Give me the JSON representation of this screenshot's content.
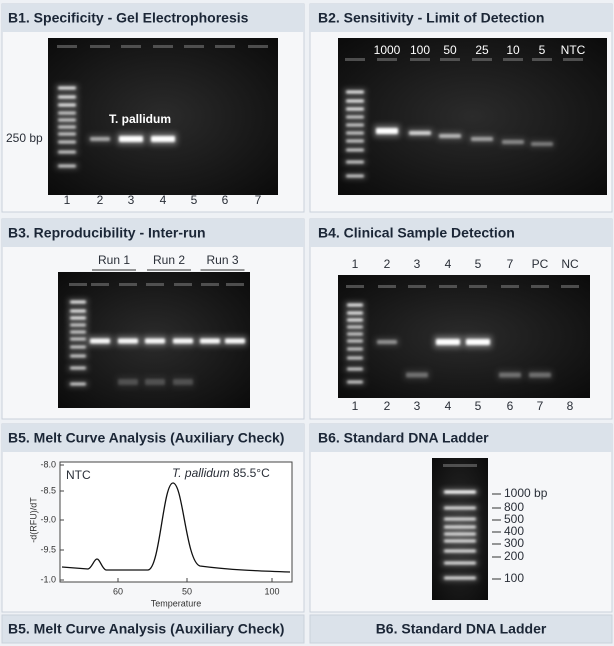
{
  "panels": [
    {
      "title": "B1. Specificity - Gel Electrophoresis",
      "size_label": "250 bp",
      "band_label": "T. pallidum",
      "lanes": [
        "1",
        "2",
        "3",
        "4",
        "5",
        "6",
        "7"
      ]
    },
    {
      "title": "B2. Sensitivity - Limit of Detection",
      "lanes_top": [
        "1000",
        "100",
        "50",
        "25",
        "10",
        "5",
        "NTC"
      ]
    },
    {
      "title": "B3. Reproducibility - Inter-run",
      "runs": [
        "Run 1",
        "Run 2",
        "Run 3"
      ]
    },
    {
      "title": "B4. Clinical Sample Detection",
      "lanes_top": [
        "1",
        "2",
        "3",
        "4",
        "5",
        "7",
        "PC",
        "NC"
      ],
      "lanes_bottom": [
        "1",
        "2",
        "3",
        "4",
        "5",
        "6",
        "7",
        "8"
      ]
    },
    {
      "title": "B5. Melt Curve Analysis (Auxiliary Check)",
      "y_label": "-d(RFU)/dT",
      "x_label": "Temperature",
      "y_ticks": [
        "-8.0",
        "-8.5",
        "-9.0",
        "-9.5",
        "-1.0"
      ],
      "x_ticks": [
        "60",
        "50",
        "100"
      ],
      "ntc_label": "NTC",
      "peak_species": "T. pallidum",
      "peak_temp": "85.5°C",
      "caption": "B5. Melt Curve Analysis (Auxiliary Check)"
    },
    {
      "title": "B6. Standard DNA Ladder",
      "ladder": [
        "1000 bp",
        "800",
        "500",
        "400",
        "300",
        "200",
        "100"
      ],
      "caption": "B6. Standard DNA Ladder"
    }
  ]
}
